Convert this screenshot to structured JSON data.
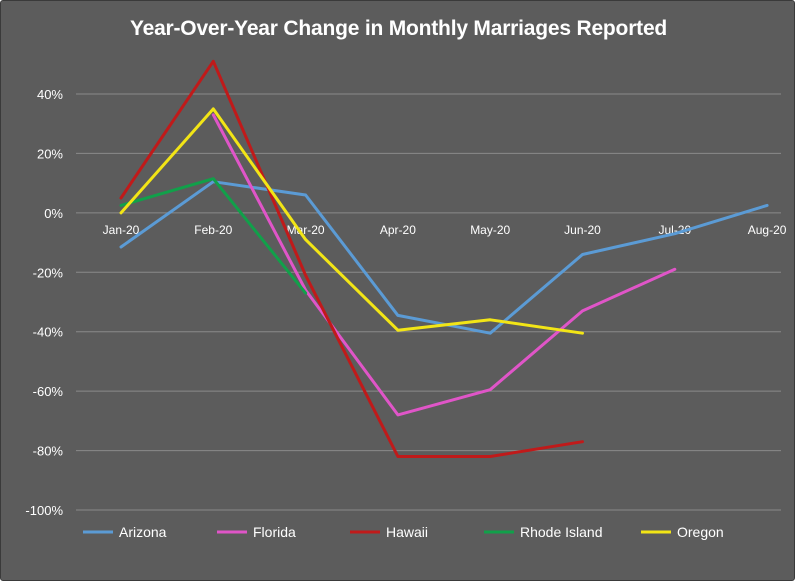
{
  "chart_data": {
    "type": "line",
    "title": "Year-Over-Year Change in Monthly Marriages Reported",
    "xlabel": "",
    "ylabel": "",
    "categories": [
      "Jan-20",
      "Feb-20",
      "Mar-20",
      "Apr-20",
      "May-20",
      "Jun-20",
      "Jul-20",
      "Aug-20"
    ],
    "ylim": [
      -100,
      50
    ],
    "y_ticks": [
      40,
      20,
      0,
      -20,
      -40,
      -60,
      -80,
      -100
    ],
    "y_tick_labels": [
      "40%",
      "20%",
      "0%",
      "-20%",
      "-40%",
      "-60%",
      "-80%",
      "-100%"
    ],
    "grid": true,
    "legend_position": "bottom",
    "series": [
      {
        "name": "Arizona",
        "color": "#5b9bd5",
        "values": [
          -11.5,
          10.5,
          6,
          -34.5,
          -40.5,
          -14,
          -7,
          2.5
        ]
      },
      {
        "name": "Florida",
        "color": "#e055c8",
        "values": [
          null,
          33,
          -26,
          -68,
          -59.5,
          -33,
          -19,
          null
        ]
      },
      {
        "name": "Hawaii",
        "color": "#c01a1a",
        "values": [
          5,
          51,
          -21,
          -82,
          -82,
          -77,
          null,
          null
        ]
      },
      {
        "name": "Rhode Island",
        "color": "#11a04a",
        "values": [
          2.5,
          11.5,
          -27,
          null,
          null,
          null,
          null,
          null
        ]
      },
      {
        "name": "Oregon",
        "color": "#f2e516",
        "values": [
          0,
          35,
          -9,
          -39.5,
          -36,
          -40.5,
          null,
          null
        ]
      }
    ]
  }
}
